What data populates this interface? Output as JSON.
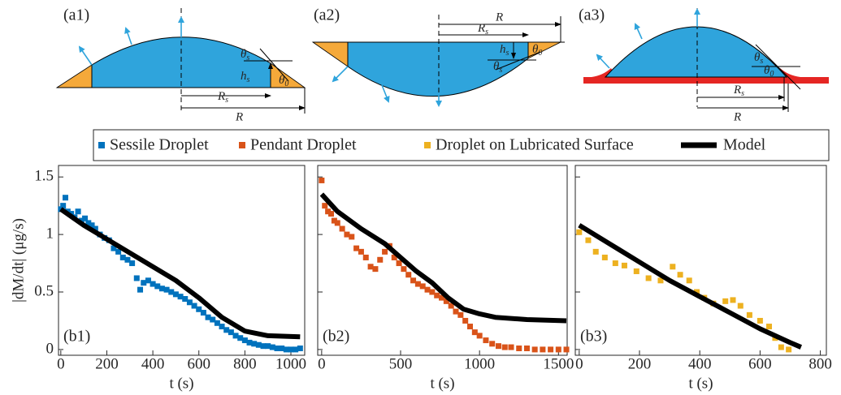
{
  "diagrams": [
    {
      "label": "(a1)",
      "theta_s": {
        "main": "θ",
        "sub": "s"
      },
      "h_s": {
        "main": "h",
        "sub": "s"
      },
      "theta_0": {
        "main": "θ",
        "sub": "0"
      },
      "R_s": {
        "main": "R",
        "sub": "s"
      },
      "R": "R"
    },
    {
      "label": "(a2)",
      "theta_s": {
        "main": "θ",
        "sub": "s"
      },
      "h_s": {
        "main": "h",
        "sub": "s"
      },
      "theta_0": {
        "main": "θ",
        "sub": "0"
      },
      "R_s": {
        "main": "R",
        "sub": "s"
      },
      "R": "R"
    },
    {
      "label": "(a3)",
      "theta_s": {
        "main": "θ",
        "sub": "s"
      },
      "theta_0": {
        "main": "θ",
        "sub": "0"
      },
      "R_s": {
        "main": "R",
        "sub": "s"
      },
      "R": "R"
    }
  ],
  "chart_data": [
    {
      "type": "scatter",
      "annotation": "(b1)",
      "y_label": "|dM/dt| (μg/s)",
      "x_label": "t (s)",
      "xlim": [
        -10,
        1060
      ],
      "xticks": [
        0,
        200,
        400,
        600,
        800,
        1000
      ],
      "ylim": [
        -0.05,
        1.6
      ],
      "yticks": [
        0,
        0.5,
        1,
        1.5
      ],
      "ytick_labels": true,
      "series": [
        {
          "name": "Sessile Droplet",
          "type": "scatter",
          "color": "#0072bd",
          "x": [
            0,
            10,
            20,
            30,
            45,
            60,
            75,
            90,
            105,
            120,
            135,
            150,
            170,
            190,
            210,
            230,
            250,
            270,
            290,
            310,
            330,
            345,
            360,
            380,
            400,
            420,
            440,
            460,
            480,
            500,
            520,
            540,
            560,
            580,
            600,
            620,
            640,
            660,
            680,
            700,
            720,
            740,
            760,
            780,
            800,
            820,
            840,
            860,
            880,
            900,
            920,
            940,
            960,
            980,
            1000,
            1020,
            1040
          ],
          "values": [
            1.22,
            1.25,
            1.32,
            1.2,
            1.18,
            1.15,
            1.2,
            1.12,
            1.14,
            1.1,
            1.08,
            1.05,
            1.0,
            0.97,
            0.95,
            0.88,
            0.85,
            0.8,
            0.78,
            0.75,
            0.62,
            0.52,
            0.58,
            0.6,
            0.57,
            0.55,
            0.53,
            0.52,
            0.5,
            0.48,
            0.46,
            0.44,
            0.41,
            0.38,
            0.35,
            0.32,
            0.28,
            0.26,
            0.23,
            0.2,
            0.17,
            0.15,
            0.12,
            0.1,
            0.08,
            0.06,
            0.05,
            0.04,
            0.03,
            0.03,
            0.02,
            0.01,
            0.01,
            0.0,
            0.0,
            0.0,
            0.01
          ]
        },
        {
          "name": "Model",
          "type": "line",
          "color": "#000000",
          "x": [
            0,
            100,
            200,
            300,
            400,
            500,
            600,
            700,
            800,
            900,
            1040
          ],
          "values": [
            1.22,
            1.08,
            0.96,
            0.84,
            0.72,
            0.6,
            0.45,
            0.28,
            0.16,
            0.12,
            0.11
          ]
        }
      ]
    },
    {
      "type": "scatter",
      "annotation": "(b2)",
      "x_label": "t (s)",
      "xlim": [
        -25,
        1555
      ],
      "xticks": [
        0,
        500,
        1000,
        1500
      ],
      "ylim": [
        -0.05,
        1.6
      ],
      "yticks": [
        0,
        0.5,
        1,
        1.5
      ],
      "ytick_labels": false,
      "series": [
        {
          "name": "Pendant Droplet",
          "type": "scatter",
          "color": "#d95319",
          "x": [
            0,
            20,
            40,
            60,
            80,
            100,
            130,
            160,
            190,
            220,
            250,
            280,
            310,
            340,
            370,
            400,
            430,
            460,
            490,
            520,
            550,
            580,
            610,
            640,
            670,
            700,
            730,
            760,
            790,
            820,
            850,
            880,
            910,
            940,
            970,
            1000,
            1040,
            1080,
            1120,
            1160,
            1200,
            1250,
            1300,
            1350,
            1400,
            1450,
            1500,
            1550
          ],
          "values": [
            1.47,
            1.25,
            1.2,
            1.18,
            1.12,
            1.1,
            1.05,
            1.0,
            0.98,
            0.88,
            0.85,
            0.8,
            0.72,
            0.7,
            0.78,
            0.85,
            0.9,
            0.8,
            0.75,
            0.7,
            0.65,
            0.6,
            0.57,
            0.55,
            0.52,
            0.5,
            0.47,
            0.45,
            0.42,
            0.38,
            0.33,
            0.3,
            0.25,
            0.2,
            0.15,
            0.12,
            0.08,
            0.05,
            0.03,
            0.02,
            0.02,
            0.01,
            0.01,
            0.0,
            0.0,
            0.0,
            0.0,
            0.0
          ]
        },
        {
          "type": "line",
          "color": "#000000",
          "x": [
            0,
            100,
            250,
            400,
            500,
            600,
            700,
            800,
            900,
            1000,
            1100,
            1300,
            1550
          ],
          "values": [
            1.35,
            1.2,
            1.05,
            0.92,
            0.8,
            0.68,
            0.58,
            0.45,
            0.35,
            0.31,
            0.28,
            0.26,
            0.25
          ]
        }
      ]
    },
    {
      "type": "scatter",
      "annotation": "(b3)",
      "x_label": "t (s)",
      "xlim": [
        -13,
        820
      ],
      "xticks": [
        0,
        200,
        400,
        600,
        800
      ],
      "ylim": [
        -0.05,
        1.6
      ],
      "yticks": [
        0,
        0.5,
        1,
        1.5
      ],
      "ytick_labels": false,
      "series": [
        {
          "name": "Droplet on Lubricated Surface",
          "type": "scatter",
          "color": "#edb120",
          "x": [
            0,
            30,
            55,
            85,
            120,
            150,
            190,
            230,
            270,
            310,
            335,
            365,
            390,
            415,
            445,
            485,
            510,
            535,
            565,
            600,
            630,
            650,
            670,
            695
          ],
          "values": [
            1.02,
            0.95,
            0.85,
            0.8,
            0.75,
            0.73,
            0.68,
            0.62,
            0.6,
            0.72,
            0.65,
            0.6,
            0.5,
            0.45,
            0.4,
            0.42,
            0.43,
            0.38,
            0.3,
            0.25,
            0.2,
            0.1,
            0.02,
            0.0
          ]
        },
        {
          "type": "line",
          "color": "#000000",
          "x": [
            0,
            100,
            200,
            300,
            400,
            500,
            600,
            700,
            736
          ],
          "values": [
            1.08,
            0.92,
            0.76,
            0.6,
            0.46,
            0.32,
            0.18,
            0.06,
            0.02
          ]
        }
      ]
    }
  ]
}
